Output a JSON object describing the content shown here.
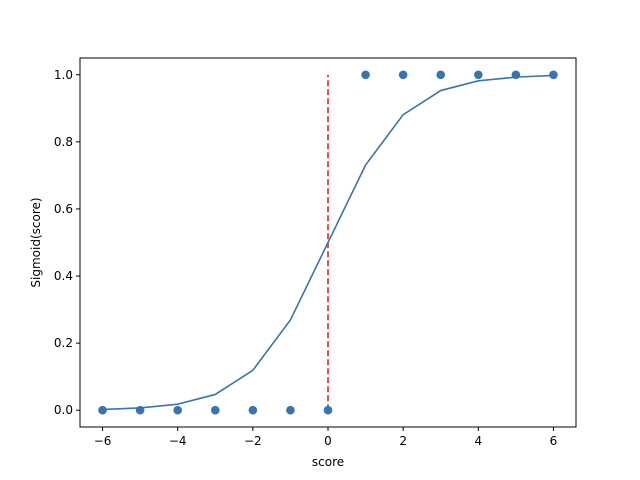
{
  "chart_data": {
    "type": "scatter",
    "xlabel": "score",
    "ylabel": "Sigmoid(score)",
    "xlim": [
      -6.6,
      6.6
    ],
    "ylim": [
      -0.05,
      1.05
    ],
    "xticks": [
      -6,
      -4,
      -2,
      0,
      2,
      4,
      6
    ],
    "xtick_labels": [
      "−6",
      "−4",
      "−2",
      "0",
      "2",
      "4",
      "6"
    ],
    "yticks": [
      0.0,
      0.2,
      0.4,
      0.6,
      0.8,
      1.0
    ],
    "ytick_labels": [
      "0.0",
      "0.2",
      "0.4",
      "0.6",
      "0.8",
      "1.0"
    ],
    "grid": false,
    "scatter": {
      "x": [
        -6,
        -5,
        -4,
        -3,
        -2,
        -1,
        0,
        1,
        2,
        3,
        4,
        5,
        6
      ],
      "y": [
        0,
        0,
        0,
        0,
        0,
        0,
        0,
        1,
        1,
        1,
        1,
        1,
        1
      ]
    },
    "curve": {
      "x": [
        -6,
        -5,
        -4,
        -3,
        -2,
        -1,
        0,
        1,
        2,
        3,
        4,
        5,
        6
      ],
      "y": [
        0.0025,
        0.0067,
        0.018,
        0.047,
        0.119,
        0.269,
        0.5,
        0.731,
        0.881,
        0.953,
        0.982,
        0.993,
        0.998
      ]
    },
    "threshold_line": {
      "x": 0,
      "y": [
        0,
        1
      ]
    },
    "colors": {
      "points": "#3a74ae",
      "curve": "#3a74ae",
      "threshold": "#d62c1c"
    }
  }
}
